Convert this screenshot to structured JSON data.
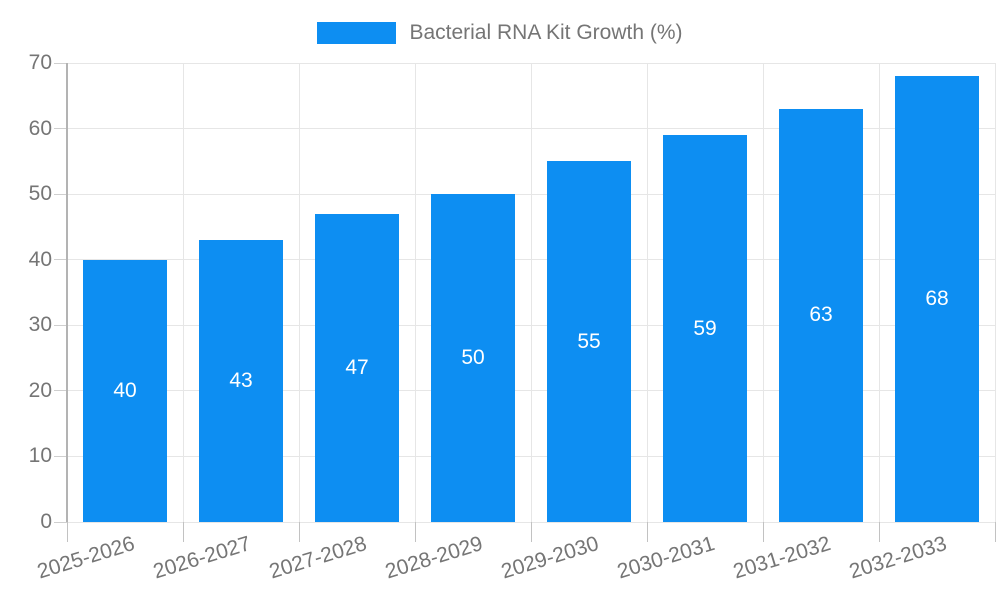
{
  "chart_data": {
    "type": "bar",
    "title": "Bacterial RNA Kit Growth (%)",
    "categories": [
      "2025-2026",
      "2026-2027",
      "2027-2028",
      "2028-2029",
      "2029-2030",
      "2030-2031",
      "2031-2032",
      "2032-2033"
    ],
    "values": [
      40,
      43,
      47,
      50,
      55,
      59,
      63,
      68
    ],
    "bar_labels": [
      "40",
      "43",
      "47",
      "50",
      "55",
      "59",
      "63",
      "68"
    ],
    "xlabel": "",
    "ylabel": "",
    "ylim": [
      0,
      70
    ],
    "yticks": [
      0,
      10,
      20,
      30,
      40,
      50,
      60,
      70
    ],
    "grid": true,
    "legend_position": "top-center",
    "x_label_rotation_deg": -17,
    "colors": {
      "bar": "#0d8ef2",
      "bar_label": "#ffffff",
      "axis_text": "#757575",
      "legend_text": "#757575",
      "gridline": "#e6e6e6",
      "axis_line": "#b3b3b3",
      "background": "#ffffff"
    }
  }
}
